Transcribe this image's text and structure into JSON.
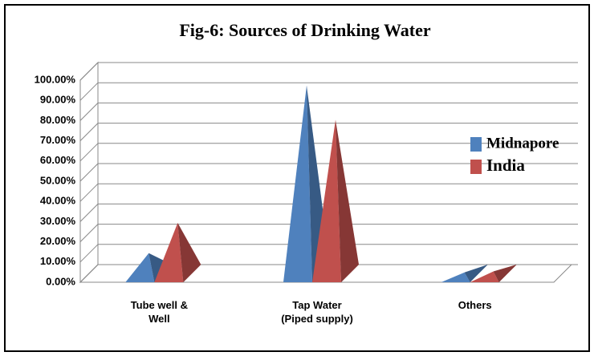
{
  "chart_data": {
    "type": "pyramid3d",
    "title": "Fig-6: Sources of Drinking Water",
    "categories": [
      "Tube well & Well",
      "Tap Water (Piped supply)",
      "Others"
    ],
    "series": [
      {
        "name": "Midnapore",
        "color": "#4f81bd",
        "values": [
          10,
          93,
          0.5
        ]
      },
      {
        "name": "India",
        "color": "#c0504d",
        "values": [
          25,
          76,
          1
        ]
      }
    ],
    "ylim": [
      0,
      100
    ],
    "yticks": [
      {
        "value": 0,
        "label": "0.00%"
      },
      {
        "value": 10,
        "label": "10.00%"
      },
      {
        "value": 20,
        "label": "20.00%"
      },
      {
        "value": 30,
        "label": "30.00%"
      },
      {
        "value": 40,
        "label": "40.00%"
      },
      {
        "value": 50,
        "label": "50.00%"
      },
      {
        "value": 60,
        "label": "60.00%"
      },
      {
        "value": 70,
        "label": "70.00%"
      },
      {
        "value": 80,
        "label": "80.00%"
      },
      {
        "value": 90,
        "label": "90.00%"
      },
      {
        "value": 100,
        "label": "100.00%"
      }
    ],
    "grid": true,
    "legend": "right"
  }
}
